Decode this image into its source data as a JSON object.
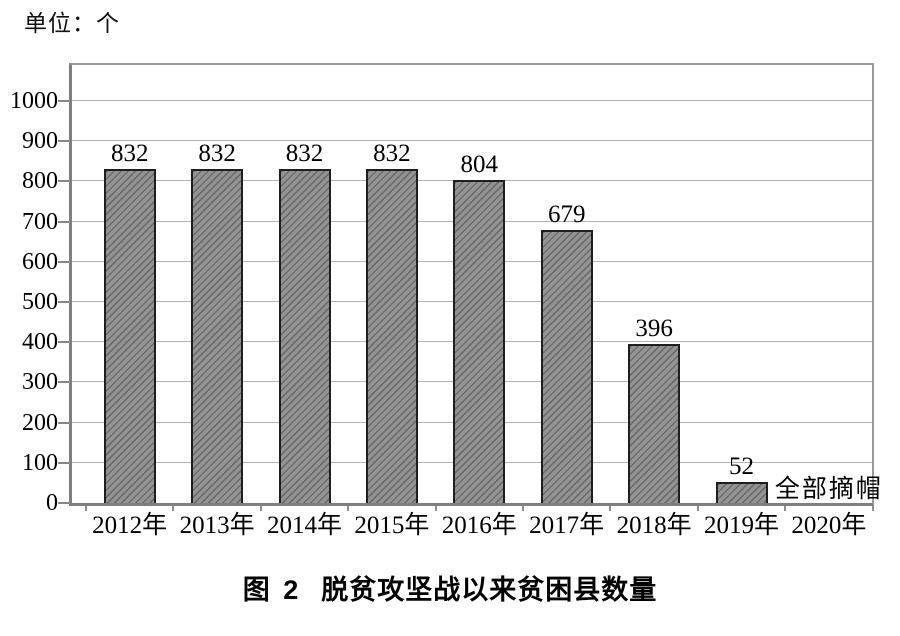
{
  "figure": {
    "unit_label": "单位：个",
    "caption": {
      "prefix": "图 2",
      "text": "脱贫攻坚战以来贫困县数量"
    }
  },
  "chart_data": {
    "type": "bar",
    "title": "图 2 脱贫攻坚战以来贫困县数量",
    "unit_label": "单位：个",
    "categories": [
      "2012年",
      "2013年",
      "2014年",
      "2015年",
      "2016年",
      "2017年",
      "2018年",
      "2019年",
      "2020年"
    ],
    "values": [
      832,
      832,
      832,
      832,
      804,
      679,
      396,
      52,
      null
    ],
    "bar_value_labels": [
      "832",
      "832",
      "832",
      "832",
      "804",
      "679",
      "396",
      "52",
      ""
    ],
    "annotations": [
      {
        "text": "全部摘帽",
        "category": "2020年",
        "category_index": 8
      }
    ],
    "xlabel": "",
    "ylabel": "",
    "ylim": [
      0,
      1000
    ],
    "yticks": [
      0,
      100,
      200,
      300,
      400,
      500,
      600,
      700,
      800,
      900,
      1000
    ],
    "grid": "horizontal",
    "legend": "none",
    "colors": {
      "bar_fill": "#949494",
      "bar_hatch": "#6d6d6d",
      "bar_border": "#1f1f1f",
      "gridline": "#b3b3b3",
      "frame": "#8a8a8a",
      "text": "#000000",
      "background": "#ffffff"
    }
  }
}
